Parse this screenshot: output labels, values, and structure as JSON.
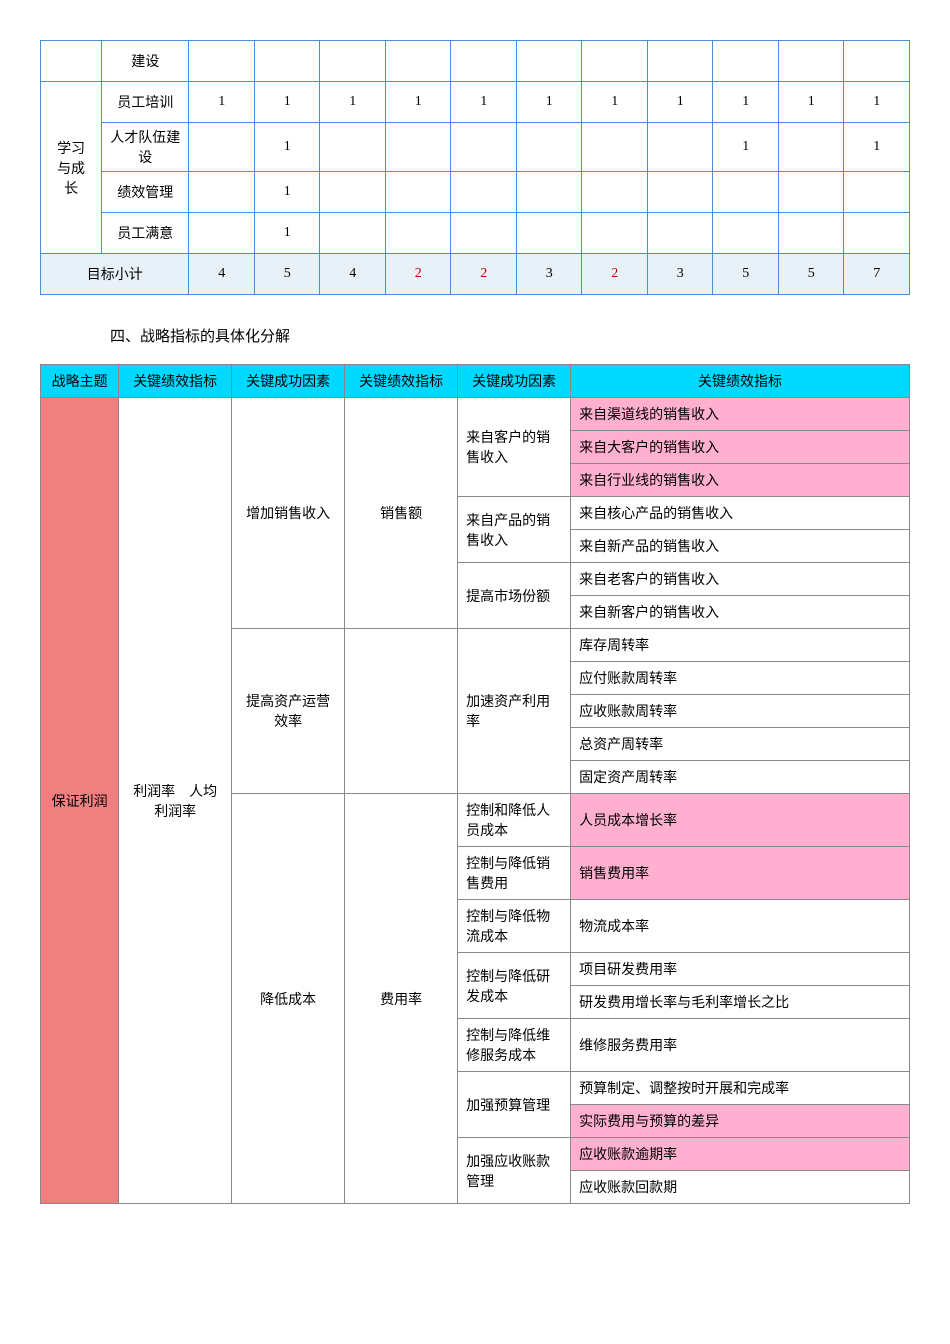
{
  "table1": {
    "group_label": "学习与成长",
    "rows": [
      {
        "label": "建设",
        "vals": [
          "",
          "",
          "",
          "",
          "",
          "",
          "",
          "",
          "",
          "",
          ""
        ]
      },
      {
        "label": "员工培训",
        "vals": [
          "1",
          "1",
          "1",
          "1",
          "1",
          "1",
          "1",
          "1",
          "1",
          "1",
          "1"
        ]
      },
      {
        "label": "人才队伍建设",
        "vals": [
          "",
          "1",
          "",
          "",
          "",
          "",
          "",
          "",
          "1",
          "",
          "1"
        ]
      },
      {
        "label": "绩效管理",
        "vals": [
          "",
          "1",
          "",
          "",
          "",
          "",
          "",
          "",
          "",
          "",
          ""
        ]
      },
      {
        "label": "员工满意",
        "vals": [
          "",
          "1",
          "",
          "",
          "",
          "",
          "",
          "",
          "",
          "",
          ""
        ]
      }
    ],
    "totals_label": "目标小计",
    "totals": [
      "4",
      "5",
      "4",
      "2",
      "2",
      "3",
      "2",
      "3",
      "5",
      "5",
      "7"
    ],
    "red_idx": [
      3,
      4,
      6
    ]
  },
  "section_title": "四、战略指标的具体化分解",
  "table2": {
    "headers": [
      "战略主题",
      "关键绩效指标",
      "关键成功因素",
      "关键绩效指标",
      "关键成功因素",
      "关键绩效指标"
    ],
    "theme": "保证利润",
    "kpi1": "利润率　人均利润率",
    "factors": [
      {
        "name": "增加销售收入",
        "kpi": "销售额",
        "subs": [
          {
            "name": "来自客户的销售收入",
            "items": [
              {
                "t": "来自渠道线的销售收入",
                "pink": true
              },
              {
                "t": "来自大客户的销售收入",
                "pink": true
              },
              {
                "t": "来自行业线的销售收入",
                "pink": true
              }
            ]
          },
          {
            "name": "来自产品的销售收入",
            "items": [
              {
                "t": "来自核心产品的销售收入",
                "pink": false
              },
              {
                "t": "来自新产品的销售收入",
                "pink": false
              }
            ]
          },
          {
            "name": "提高市场份额",
            "items": [
              {
                "t": "来自老客户的销售收入",
                "pink": false
              },
              {
                "t": "来自新客户的销售收入",
                "pink": false
              }
            ]
          }
        ]
      },
      {
        "name": "提高资产运营效率",
        "kpi": "",
        "subs": [
          {
            "name": "加速资产利用率",
            "items": [
              {
                "t": "库存周转率",
                "pink": false
              },
              {
                "t": "应付账款周转率",
                "pink": false
              },
              {
                "t": "应收账款周转率",
                "pink": false
              },
              {
                "t": "总资产周转率",
                "pink": false
              },
              {
                "t": "固定资产周转率",
                "pink": false
              }
            ]
          }
        ]
      },
      {
        "name": "降低成本",
        "kpi": "费用率",
        "subs": [
          {
            "name": "控制和降低人员成本",
            "items": [
              {
                "t": "人员成本增长率",
                "pink": true
              }
            ]
          },
          {
            "name": "控制与降低销售费用",
            "items": [
              {
                "t": "销售费用率",
                "pink": true
              }
            ]
          },
          {
            "name": "控制与降低物流成本",
            "items": [
              {
                "t": "物流成本率",
                "pink": false
              }
            ]
          },
          {
            "name": "控制与降低研发成本",
            "items": [
              {
                "t": "项目研发费用率",
                "pink": false
              },
              {
                "t": "研发费用增长率与毛利率增长之比",
                "pink": false
              }
            ]
          },
          {
            "name": "控制与降低维修服务成本",
            "items": [
              {
                "t": "维修服务费用率",
                "pink": false
              }
            ]
          },
          {
            "name": "加强预算管理",
            "items": [
              {
                "t": "预算制定、调整按时开展和完成率",
                "pink": false
              },
              {
                "t": "实际费用与预算的差异",
                "pink": true
              }
            ]
          },
          {
            "name": "加强应收账款管理",
            "items": [
              {
                "t": "应收账款逾期率",
                "pink": true
              },
              {
                "t": "应收账款回款期",
                "pink": false
              }
            ]
          }
        ]
      }
    ]
  }
}
